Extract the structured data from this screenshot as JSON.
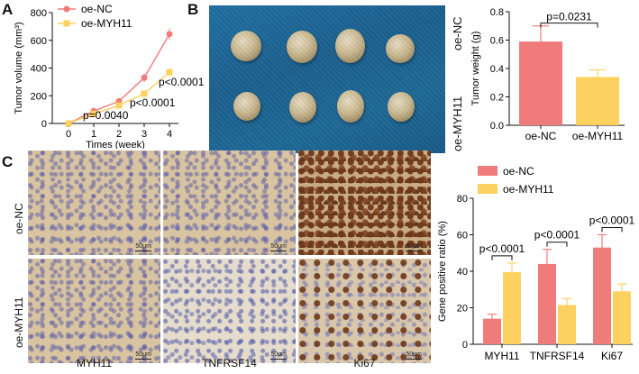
{
  "panels": {
    "a_letter": "A",
    "b_letter": "B",
    "c_letter": "C"
  },
  "photo_labels": {
    "top_row": "oe-NC",
    "bottom_row": "oe-MYH11"
  },
  "micro": {
    "row_labels": [
      "oe-NC",
      "oe-MYH11"
    ],
    "col_labels": [
      "MYH11",
      "TNFRSF14",
      "Ki67"
    ],
    "scale_label": "50μm"
  },
  "colors": {
    "oe_nc": "#f07b7b",
    "oe_myh11": "#fdd15f",
    "axis": "#111111",
    "photo_bg": "#1d6896"
  },
  "chart_data": [
    {
      "type": "line",
      "panel": "A",
      "xlabel": "Times (week)",
      "ylabel": "Tumor volume (mm³)",
      "x": [
        0,
        1,
        2,
        3,
        4
      ],
      "ylim": [
        0,
        800
      ],
      "yticks": [
        0,
        200,
        400,
        600,
        800
      ],
      "legend": {
        "placement": "top-left",
        "entries": [
          "oe-NC",
          "oe-MYH11"
        ]
      },
      "series": [
        {
          "name": "oe-NC",
          "values": [
            0,
            90,
            160,
            330,
            645
          ],
          "errors": [
            0,
            12,
            15,
            30,
            40
          ]
        },
        {
          "name": "oe-MYH11",
          "values": [
            0,
            70,
            130,
            215,
            370
          ],
          "errors": [
            0,
            10,
            12,
            18,
            25
          ]
        }
      ],
      "annotations": [
        {
          "text": "p<0.0001",
          "x": 4,
          "y": 370
        },
        {
          "text": "p<0.0001",
          "x": 3,
          "y": 215
        },
        {
          "text": "p=0.0040",
          "x": 2,
          "y": 130
        }
      ]
    },
    {
      "type": "bar",
      "panel": "B",
      "ylabel": "Tumor weight (g)",
      "categories": [
        "oe-NC",
        "oe-MYH11"
      ],
      "values": [
        0.59,
        0.34
      ],
      "errors": [
        0.11,
        0.05
      ],
      "ylim": [
        0,
        0.8
      ],
      "yticks": [
        0.0,
        0.2,
        0.4,
        0.6,
        0.8
      ],
      "annotation": "p=0.0231"
    },
    {
      "type": "bar",
      "panel": "C",
      "ylabel": "Gene positive ratio (%)",
      "categories": [
        "MYH11",
        "TNFRSF14",
        "Ki67"
      ],
      "ylim": [
        0,
        80
      ],
      "yticks": [
        0,
        20,
        40,
        60,
        80
      ],
      "legend": {
        "placement": "top",
        "entries": [
          "oe-NC",
          "oe-MYH11"
        ]
      },
      "series": [
        {
          "name": "oe-NC",
          "values": [
            14,
            44,
            53
          ],
          "errors": [
            2.5,
            8,
            7
          ]
        },
        {
          "name": "oe-MYH11",
          "values": [
            39.5,
            21.5,
            29
          ],
          "errors": [
            5,
            3.5,
            4
          ]
        }
      ],
      "annotations": [
        "p<0.0001",
        "p<0.0001",
        "p<0.0001"
      ]
    }
  ]
}
